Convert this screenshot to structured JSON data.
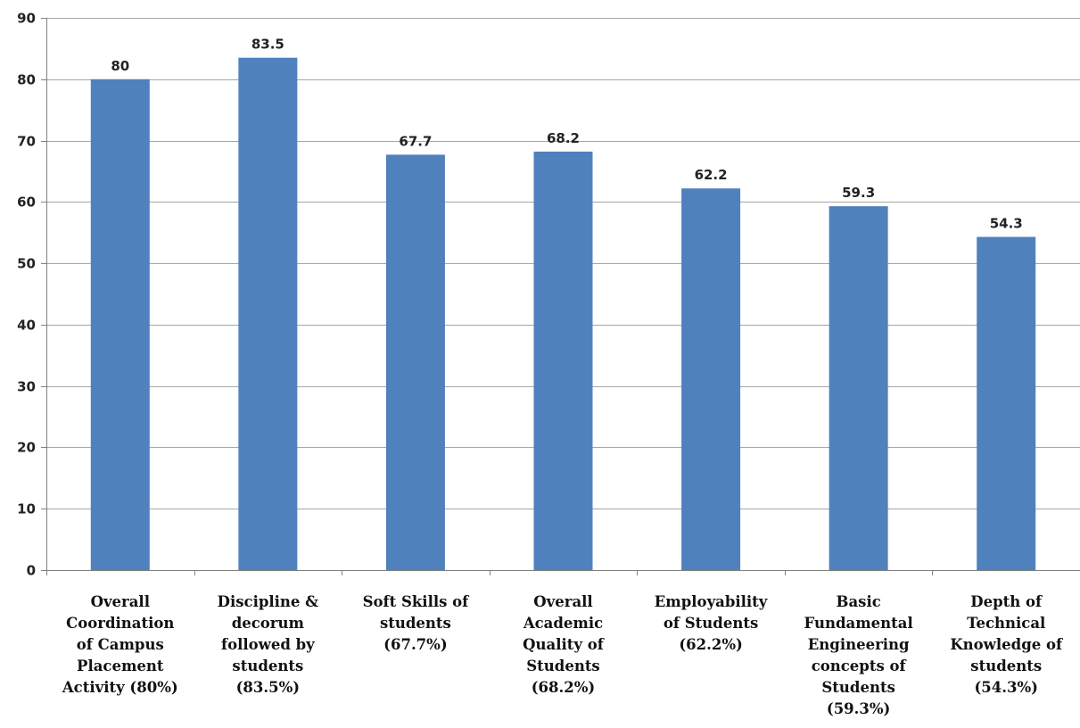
{
  "chart_data": {
    "type": "bar",
    "title": "",
    "xlabel": "",
    "ylabel": "",
    "ylim": [
      0,
      90
    ],
    "yticks": [
      0,
      10,
      20,
      30,
      40,
      50,
      60,
      70,
      80,
      90
    ],
    "grid": true,
    "bar_color": "#4f81bd",
    "categories": [
      [
        "Overall",
        "Coordination",
        "of Campus",
        "Placement",
        "Activity (80%)"
      ],
      [
        "Discipline &",
        "decorum",
        "followed by",
        "students",
        "(83.5%)"
      ],
      [
        "Soft Skills of",
        "students",
        "(67.7%)"
      ],
      [
        "Overall",
        "Academic",
        "Quality of",
        "Students",
        "(68.2%)"
      ],
      [
        "Employability",
        "of Students",
        "(62.2%)"
      ],
      [
        "Basic",
        "Fundamental",
        "Engineering",
        "concepts of",
        "Students",
        "(59.3%)"
      ],
      [
        "Depth of",
        "Technical",
        "Knowledge of",
        "students",
        "(54.3%)"
      ]
    ],
    "values": [
      80,
      83.5,
      67.7,
      68.2,
      62.2,
      59.3,
      54.3
    ],
    "data_labels": [
      "80",
      "83.5",
      "67.7",
      "68.2",
      "62.2",
      "59.3",
      "54.3"
    ]
  }
}
